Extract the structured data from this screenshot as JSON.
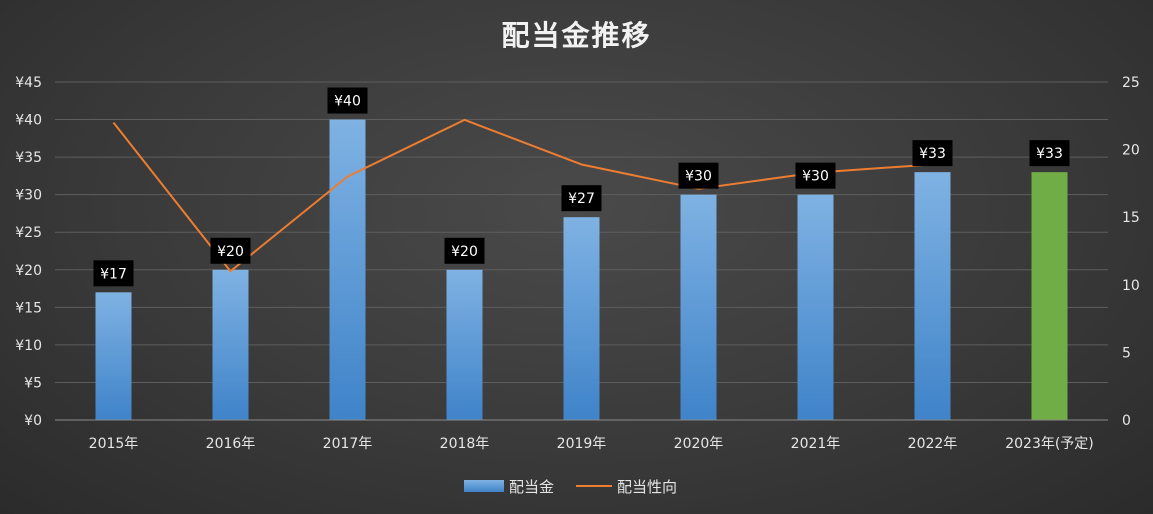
{
  "chart_data": {
    "type": "bar",
    "title": "配当金推移",
    "categories": [
      "2015年",
      "2016年",
      "2017年",
      "2018年",
      "2019年",
      "2020年",
      "2021年",
      "2022年",
      "2023年(予定)"
    ],
    "series": [
      {
        "name": "配当金",
        "type": "bar",
        "axis": "left",
        "values": [
          17,
          20,
          40,
          20,
          27,
          30,
          30,
          33,
          33
        ],
        "data_labels": [
          "¥17",
          "¥20",
          "¥40",
          "¥20",
          "¥27",
          "¥30",
          "¥30",
          "¥33",
          "¥33"
        ],
        "color": "#5b9bd5",
        "highlight_color": "#70ad47",
        "highlight_index": 8
      },
      {
        "name": "配当性向",
        "type": "line",
        "axis": "right",
        "values": [
          22,
          11,
          18,
          22.2,
          18.9,
          17.1,
          18.3,
          18.9,
          null
        ],
        "color": "#ed7d31"
      }
    ],
    "y_left": {
      "min": 0,
      "max": 45,
      "step": 5,
      "tick_labels": [
        "¥0",
        "¥5",
        "¥10",
        "¥15",
        "¥20",
        "¥25",
        "¥30",
        "¥35",
        "¥40",
        "¥45"
      ]
    },
    "y_right": {
      "min": 0,
      "max": 25,
      "step": 5,
      "tick_labels": [
        "0",
        "5",
        "10",
        "15",
        "20",
        "25"
      ]
    },
    "grid": true,
    "legend_position": "bottom"
  }
}
